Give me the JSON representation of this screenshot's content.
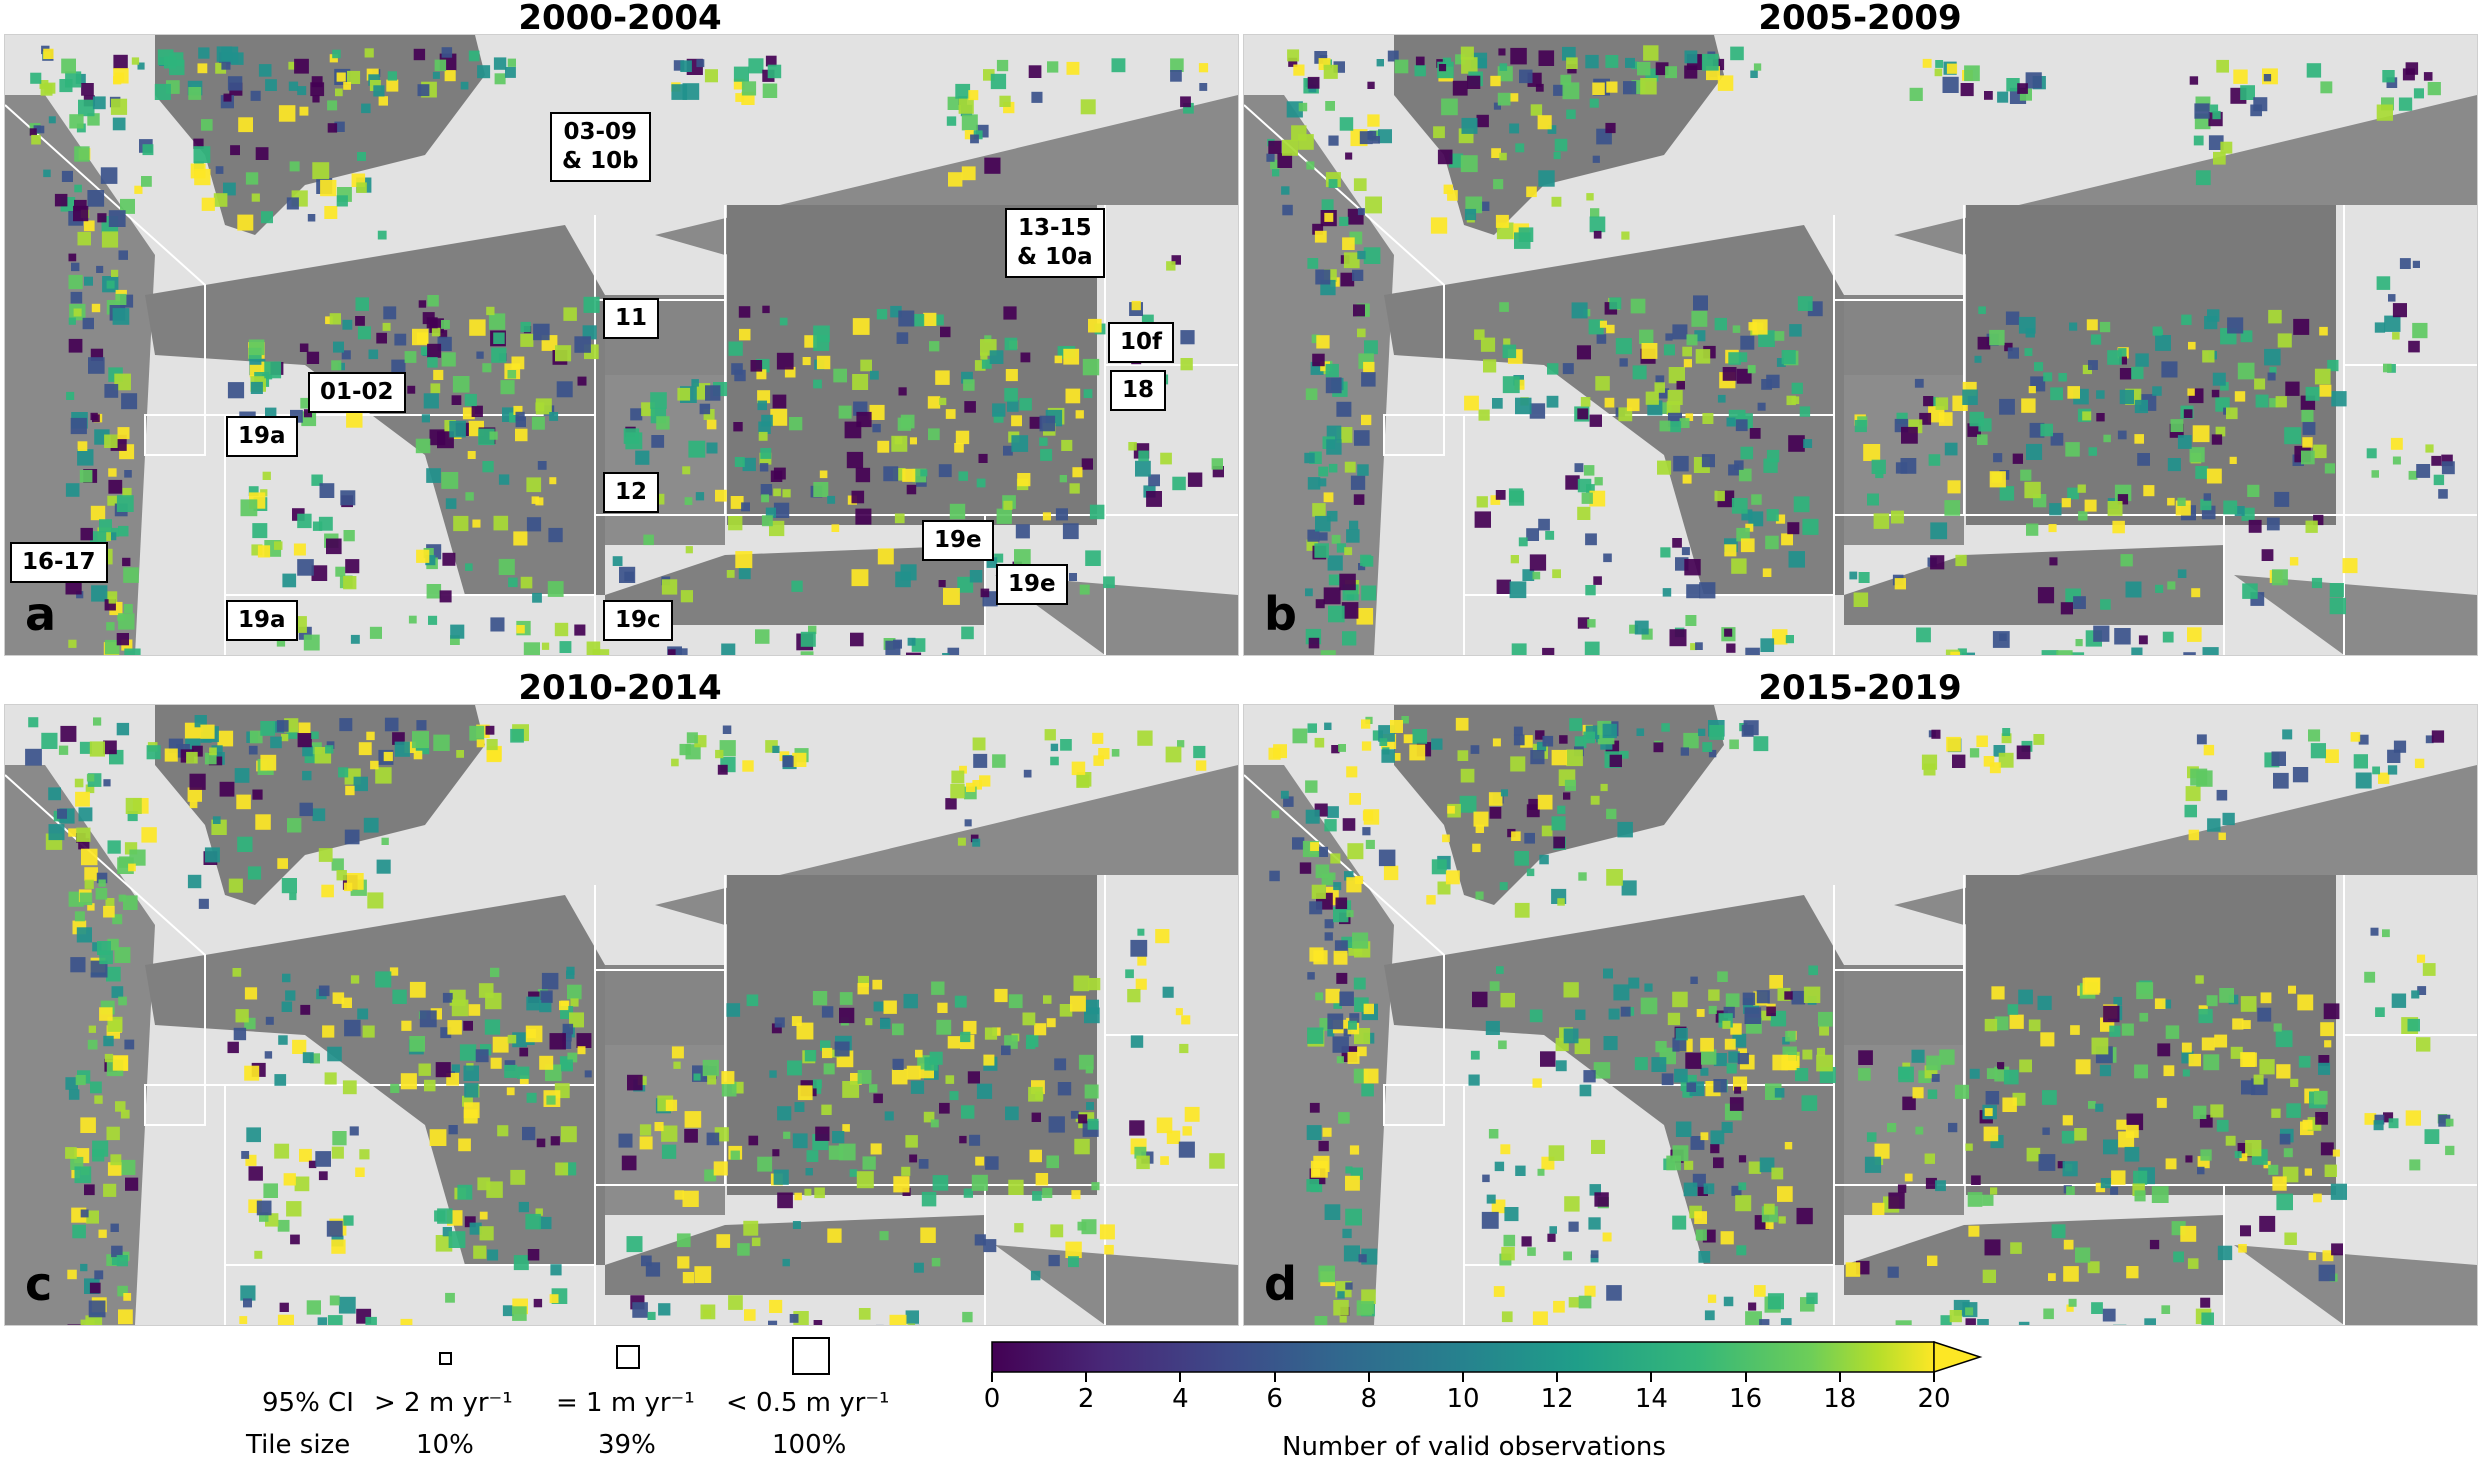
{
  "panels": [
    {
      "title": "2000-2004",
      "letter": "a"
    },
    {
      "title": "2005-2009",
      "letter": "b"
    },
    {
      "title": "2010-2014",
      "letter": "c"
    },
    {
      "title": "2015-2019",
      "letter": "d"
    }
  ],
  "region_labels": {
    "r0309": "03-09\n& 10b",
    "r1315": "13-15\n& 10a",
    "r11": "11",
    "r10f": "10f",
    "r0102": "01-02",
    "r18": "18",
    "r19a_top": "19a",
    "r12": "12",
    "r1617": "16-17",
    "r19e_a": "19e",
    "r19e_b": "19e",
    "r19a_bot": "19a",
    "r19c": "19c"
  },
  "legend": {
    "ci_label": "95% CI",
    "ci_values": [
      "> 2 m yr⁻¹",
      "= 1 m yr⁻¹",
      "< 0.5 m yr⁻¹"
    ],
    "tile_label": "Tile size",
    "tile_values": [
      "10%",
      "39%",
      "100%"
    ]
  },
  "colorbar": {
    "label": "Number of valid observations",
    "ticks": [
      "0",
      "2",
      "4",
      "6",
      "8",
      "10",
      "12",
      "14",
      "16",
      "18",
      "20"
    ],
    "min": 0,
    "max": 20,
    "extend": "max",
    "colormap": "viridis",
    "colors": [
      "#440154",
      "#3b528b",
      "#21918c",
      "#5ec962",
      "#fde725"
    ]
  }
}
